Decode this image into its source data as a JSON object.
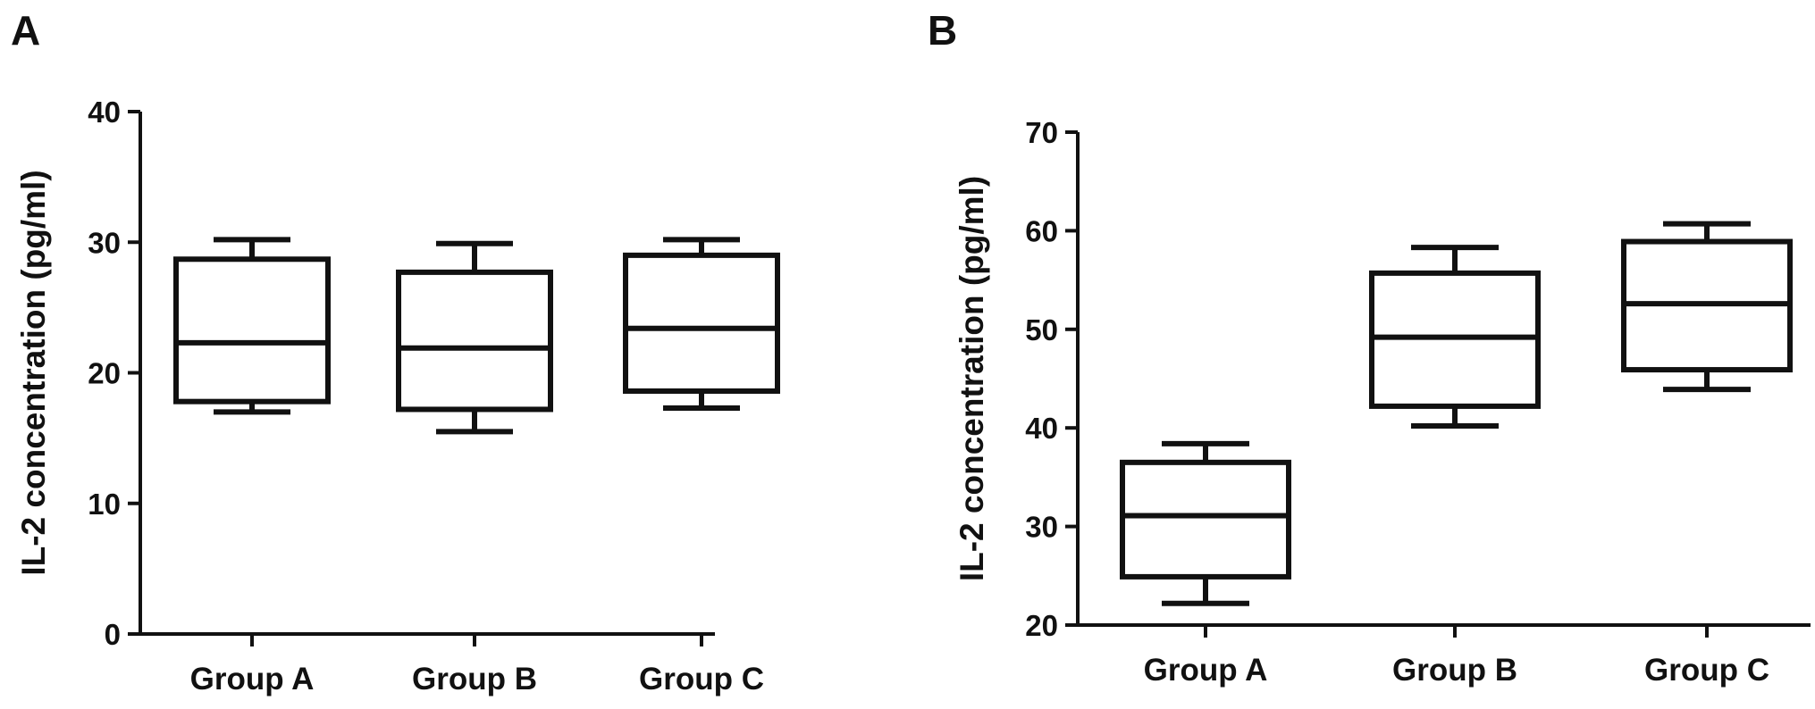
{
  "chart_data": [
    {
      "panel_label": "A",
      "type": "boxplot",
      "ylabel": "IL-2 concentration (pg/ml)",
      "ylim": [
        0,
        40
      ],
      "yticks": [
        0,
        10,
        20,
        30,
        40
      ],
      "categories": [
        "Group A",
        "Group B",
        "Group C"
      ],
      "boxes": [
        {
          "min": 17,
          "q1": 17.8,
          "median": 22.3,
          "q3": 28.7,
          "max": 30.2
        },
        {
          "min": 15.5,
          "q1": 17.2,
          "median": 21.9,
          "q3": 27.7,
          "max": 29.9
        },
        {
          "min": 17.3,
          "q1": 18.6,
          "median": 23.4,
          "q3": 29.0,
          "max": 30.2
        }
      ]
    },
    {
      "panel_label": "B",
      "type": "boxplot",
      "ylabel": "IL-2 concentration (pg/ml)",
      "ylim": [
        20,
        70
      ],
      "yticks": [
        20,
        30,
        40,
        50,
        60,
        70
      ],
      "categories": [
        "Group A",
        "Group B",
        "Group C"
      ],
      "boxes": [
        {
          "min": 22.2,
          "q1": 24.9,
          "median": 31.1,
          "q3": 36.5,
          "max": 38.4
        },
        {
          "min": 40.2,
          "q1": 42.2,
          "median": 49.2,
          "q3": 55.7,
          "max": 58.3
        },
        {
          "min": 43.9,
          "q1": 45.9,
          "median": 52.6,
          "q3": 58.9,
          "max": 60.7
        }
      ]
    }
  ]
}
